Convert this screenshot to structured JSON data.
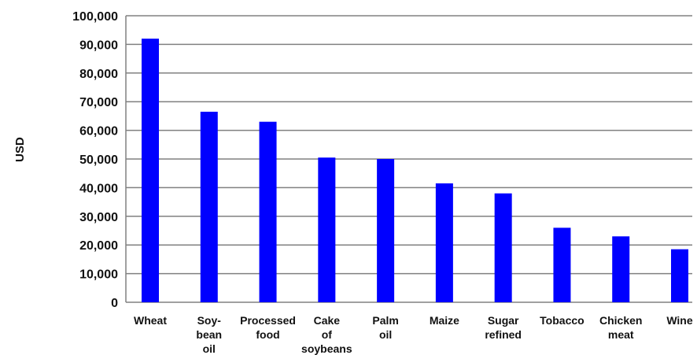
{
  "chart_data": {
    "type": "bar",
    "ylabel": "USD",
    "xlabel": "",
    "ylim": [
      0,
      100000
    ],
    "yticks": [
      "0",
      "10,000",
      "20,000",
      "30,000",
      "40,000",
      "50,000",
      "60,000",
      "70,000",
      "80,000",
      "90,000",
      "100,000"
    ],
    "grid": true,
    "categories": [
      [
        "Wheat"
      ],
      [
        "Soy-",
        "bean",
        "oil"
      ],
      [
        "Processed",
        "food"
      ],
      [
        "Cake",
        "of",
        "soybeans"
      ],
      [
        "Palm",
        "oil"
      ],
      [
        "Maize"
      ],
      [
        "Sugar",
        "refined"
      ],
      [
        "Tobacco"
      ],
      [
        "Chicken",
        "meat"
      ],
      [
        "Wine"
      ]
    ],
    "values": [
      92000,
      66500,
      63000,
      50500,
      50000,
      41500,
      38000,
      26000,
      23000,
      18500
    ],
    "bar_color": "#0000ff",
    "grid_color": "#808080"
  }
}
